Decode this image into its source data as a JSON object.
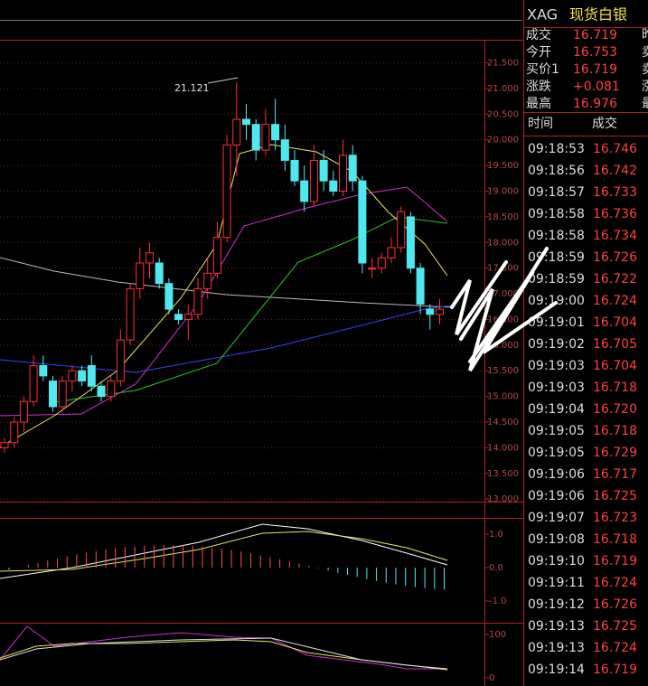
{
  "main_chart": {
    "yticks": [
      {
        "value": 21.5,
        "label": "21.500"
      },
      {
        "value": 21,
        "label": "21.000"
      },
      {
        "value": 20.5,
        "label": "20.500"
      },
      {
        "value": 20,
        "label": "20.000"
      },
      {
        "value": 19.5,
        "label": "19.500"
      },
      {
        "value": 19,
        "label": "19.000"
      },
      {
        "value": 18.5,
        "label": "18.500"
      },
      {
        "value": 18,
        "label": "18.000"
      },
      {
        "value": 17.5,
        "label": "17.500"
      },
      {
        "value": 17,
        "label": "17.000"
      },
      {
        "value": 16.5,
        "label": "16.500"
      },
      {
        "value": 16,
        "label": "16.000"
      },
      {
        "value": 15.5,
        "label": "15.500"
      },
      {
        "value": 15,
        "label": "15.000"
      },
      {
        "value": 14.5,
        "label": "14.500"
      },
      {
        "value": 14,
        "label": "14.000"
      },
      {
        "value": 13.5,
        "label": "13.500"
      },
      {
        "value": 13,
        "label": "13.000"
      }
    ],
    "ylim": [
      12.95,
      21.95
    ],
    "max_label": "21.121",
    "candles": [
      {
        "o": 14.0,
        "h": 14.2,
        "l": 13.9,
        "c": 14.1
      },
      {
        "o": 14.1,
        "h": 14.6,
        "l": 14.0,
        "c": 14.5
      },
      {
        "o": 14.5,
        "h": 15.0,
        "l": 14.3,
        "c": 14.9
      },
      {
        "o": 14.9,
        "h": 15.8,
        "l": 14.8,
        "c": 15.6
      },
      {
        "o": 15.6,
        "h": 15.8,
        "l": 15.3,
        "c": 15.4
      },
      {
        "o": 15.3,
        "h": 15.4,
        "l": 14.7,
        "c": 14.8
      },
      {
        "o": 14.8,
        "h": 15.4,
        "l": 14.7,
        "c": 15.3
      },
      {
        "o": 15.3,
        "h": 15.6,
        "l": 15.1,
        "c": 15.5
      },
      {
        "o": 15.5,
        "h": 15.6,
        "l": 15.2,
        "c": 15.3
      },
      {
        "o": 15.6,
        "h": 15.8,
        "l": 15.1,
        "c": 15.2
      },
      {
        "o": 15.2,
        "h": 15.3,
        "l": 14.9,
        "c": 15.0
      },
      {
        "o": 15.0,
        "h": 15.4,
        "l": 14.9,
        "c": 15.3
      },
      {
        "o": 15.3,
        "h": 16.3,
        "l": 15.2,
        "c": 16.1
      },
      {
        "o": 16.1,
        "h": 17.2,
        "l": 16.0,
        "c": 17.1
      },
      {
        "o": 17.1,
        "h": 17.9,
        "l": 16.9,
        "c": 17.6
      },
      {
        "o": 17.6,
        "h": 18.0,
        "l": 17.3,
        "c": 17.8
      },
      {
        "o": 17.6,
        "h": 17.7,
        "l": 17.1,
        "c": 17.2
      },
      {
        "o": 17.2,
        "h": 17.3,
        "l": 16.6,
        "c": 16.7
      },
      {
        "o": 16.6,
        "h": 16.7,
        "l": 16.4,
        "c": 16.5
      },
      {
        "o": 16.5,
        "h": 16.8,
        "l": 16.1,
        "c": 16.6
      },
      {
        "o": 16.6,
        "h": 17.3,
        "l": 16.5,
        "c": 17.1
      },
      {
        "o": 17.1,
        "h": 17.7,
        "l": 16.9,
        "c": 17.4
      },
      {
        "o": 17.4,
        "h": 18.4,
        "l": 17.3,
        "c": 18.1
      },
      {
        "o": 18.1,
        "h": 20.1,
        "l": 18.0,
        "c": 19.9
      },
      {
        "o": 19.9,
        "h": 21.121,
        "l": 19.3,
        "c": 20.4
      },
      {
        "o": 20.4,
        "h": 20.7,
        "l": 20.0,
        "c": 20.3
      },
      {
        "o": 20.3,
        "h": 20.4,
        "l": 19.6,
        "c": 19.8
      },
      {
        "o": 19.8,
        "h": 20.6,
        "l": 19.7,
        "c": 20.3
      },
      {
        "o": 20.3,
        "h": 20.8,
        "l": 19.8,
        "c": 20.0
      },
      {
        "o": 20.0,
        "h": 20.3,
        "l": 19.4,
        "c": 19.6
      },
      {
        "o": 19.6,
        "h": 19.8,
        "l": 19.1,
        "c": 19.2
      },
      {
        "o": 19.2,
        "h": 19.5,
        "l": 18.6,
        "c": 18.8
      },
      {
        "o": 18.8,
        "h": 19.9,
        "l": 18.7,
        "c": 19.6
      },
      {
        "o": 19.6,
        "h": 19.8,
        "l": 19.0,
        "c": 19.2
      },
      {
        "o": 19.2,
        "h": 19.4,
        "l": 18.9,
        "c": 19.0
      },
      {
        "o": 19.0,
        "h": 20.0,
        "l": 18.9,
        "c": 19.7
      },
      {
        "o": 19.7,
        "h": 19.9,
        "l": 19.0,
        "c": 19.2
      },
      {
        "o": 19.2,
        "h": 19.3,
        "l": 17.4,
        "c": 17.6
      },
      {
        "o": 17.5,
        "h": 17.7,
        "l": 17.3,
        "c": 17.5
      },
      {
        "o": 17.5,
        "h": 17.8,
        "l": 17.4,
        "c": 17.7
      },
      {
        "o": 17.7,
        "h": 18.1,
        "l": 17.6,
        "c": 17.9
      },
      {
        "o": 17.9,
        "h": 18.7,
        "l": 17.8,
        "c": 18.6
      },
      {
        "o": 18.5,
        "h": 18.6,
        "l": 17.4,
        "c": 17.5
      },
      {
        "o": 17.5,
        "h": 17.6,
        "l": 16.6,
        "c": 16.8
      },
      {
        "o": 16.7,
        "h": 16.8,
        "l": 16.3,
        "c": 16.6
      },
      {
        "o": 16.6,
        "h": 16.9,
        "l": 16.4,
        "c": 16.7
      }
    ]
  },
  "macd_panel": {
    "ticks": [
      {
        "value": 1,
        "label": "1.0"
      },
      {
        "value": 0,
        "label": "0.0"
      },
      {
        "value": -1,
        "label": "-1.0"
      }
    ]
  },
  "osc_panel": {
    "ticks": [
      100,
      0
    ]
  },
  "quote": {
    "symbol": "XAG",
    "name": "现货白银",
    "rows": [
      {
        "label": "成交",
        "value": "16.719",
        "side": "昨"
      },
      {
        "label": "今开",
        "value": "16.753",
        "side": "卖"
      },
      {
        "label": "买价1",
        "value": "16.719",
        "side": "卖"
      },
      {
        "label": "涨跌",
        "value": "+0.081",
        "side": "涨"
      },
      {
        "label": "最高",
        "value": "16.976",
        "side": "最"
      }
    ]
  },
  "trades": {
    "headers": [
      "时间",
      "成交"
    ],
    "rows": [
      [
        "09:18:53",
        "16.746"
      ],
      [
        "09:18:56",
        "16.742"
      ],
      [
        "09:18:57",
        "16.733"
      ],
      [
        "09:18:58",
        "16.736"
      ],
      [
        "09:18:58",
        "16.734"
      ],
      [
        "09:18:59",
        "16.726"
      ],
      [
        "09:18:59",
        "16.722"
      ],
      [
        "09:19:00",
        "16.724"
      ],
      [
        "09:19:01",
        "16.704"
      ],
      [
        "09:19:02",
        "16.705"
      ],
      [
        "09:19:03",
        "16.704"
      ],
      [
        "09:19:03",
        "16.718"
      ],
      [
        "09:19:04",
        "16.720"
      ],
      [
        "09:19:05",
        "16.718"
      ],
      [
        "09:19:05",
        "16.729"
      ],
      [
        "09:19:06",
        "16.717"
      ],
      [
        "09:19:06",
        "16.725"
      ],
      [
        "09:19:07",
        "16.723"
      ],
      [
        "09:19:08",
        "16.718"
      ],
      [
        "09:19:10",
        "16.719"
      ],
      [
        "09:19:11",
        "16.724"
      ],
      [
        "09:19:12",
        "16.726"
      ],
      [
        "09:19:13",
        "16.725"
      ],
      [
        "09:19:13",
        "16.724"
      ],
      [
        "09:19:14",
        "16.719"
      ]
    ]
  }
}
